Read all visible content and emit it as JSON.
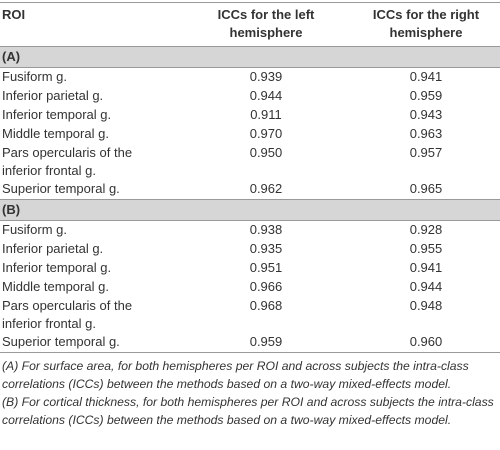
{
  "table": {
    "headers": [
      "ROI",
      "ICCs for the left hemisphere",
      "ICCs for the right hemisphere"
    ],
    "sections": [
      {
        "label": "(A)",
        "rows": [
          [
            "Fusiform g.",
            "0.939",
            "0.941"
          ],
          [
            "Inferior parietal g.",
            "0.944",
            "0.959"
          ],
          [
            "Inferior temporal g.",
            "0.911",
            "0.943"
          ],
          [
            "Middle temporal g.",
            "0.970",
            "0.963"
          ],
          [
            "Pars opercularis of the inferior frontal g.",
            "0.950",
            "0.957"
          ],
          [
            "Superior temporal g.",
            "0.962",
            "0.965"
          ]
        ]
      },
      {
        "label": "(B)",
        "rows": [
          [
            "Fusiform g.",
            "0.938",
            "0.928"
          ],
          [
            "Inferior parietal g.",
            "0.935",
            "0.955"
          ],
          [
            "Inferior temporal g.",
            "0.951",
            "0.941"
          ],
          [
            "Middle temporal g.",
            "0.966",
            "0.944"
          ],
          [
            "Pars opercularis of the inferior frontal g.",
            "0.968",
            "0.948"
          ],
          [
            "Superior temporal g.",
            "0.959",
            "0.960"
          ]
        ]
      }
    ],
    "footnotes": [
      "(A) For surface area, for both hemispheres per ROI and across subjects the intra-class correlations (ICCs) between the methods based on a two-way mixed-effects model.",
      "(B) For cortical thickness, for both hemispheres per ROI and across subjects the intra-class correlations (ICCs) between the methods based on a two-way mixed-effects model."
    ]
  }
}
